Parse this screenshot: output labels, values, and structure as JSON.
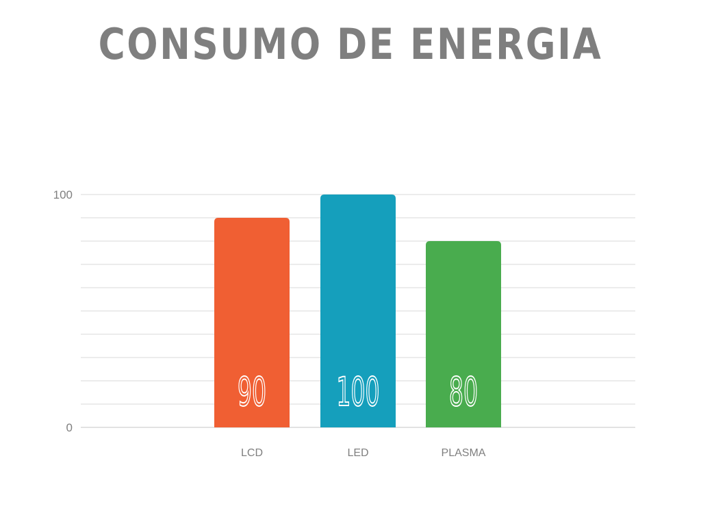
{
  "title": "CONSUMO DE ENERGIA",
  "chart_data": {
    "type": "bar",
    "title": "CONSUMO DE ENERGIA",
    "categories": [
      "LCD",
      "LED",
      "PLASMA"
    ],
    "values": [
      90,
      100,
      80
    ],
    "value_labels": [
      "90",
      "100",
      "80"
    ],
    "colors": [
      "#f05f33",
      "#159fbc",
      "#49ac4e"
    ],
    "ylim": [
      0,
      100
    ],
    "y_ticks": [
      {
        "value": 100,
        "label": "100"
      },
      {
        "value": 0,
        "label": "0"
      }
    ],
    "grid": true,
    "grid_lines": 10,
    "grid_color": "#d9d9d9",
    "xlabel": "",
    "ylabel": ""
  }
}
